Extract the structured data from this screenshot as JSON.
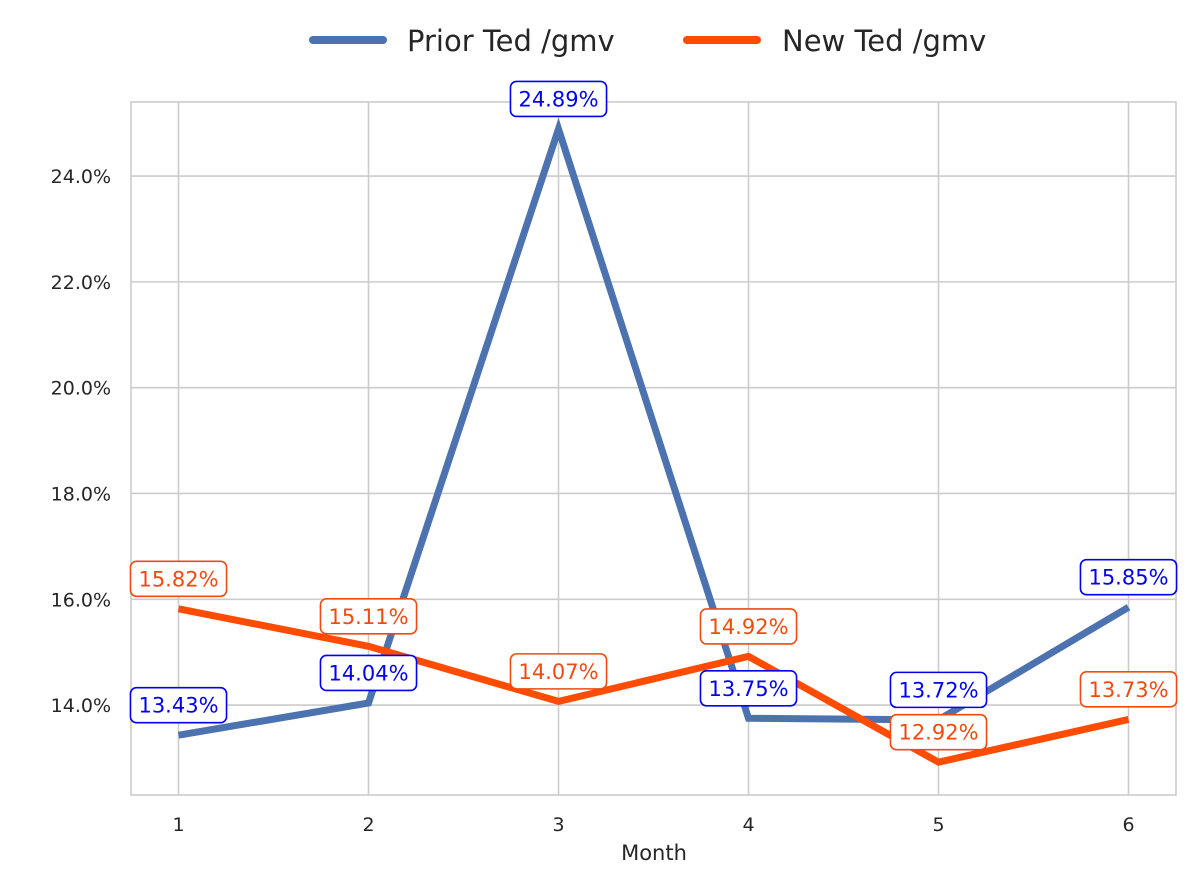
{
  "chart_data": {
    "type": "line",
    "title": "",
    "xlabel": "Month",
    "ylabel": "",
    "x": [
      1,
      2,
      3,
      4,
      5,
      6
    ],
    "x_tick_labels": [
      "1",
      "2",
      "3",
      "4",
      "5",
      "6"
    ],
    "y_tick_values": [
      14.0,
      16.0,
      18.0,
      20.0,
      22.0,
      24.0
    ],
    "y_tick_labels": [
      "14.0%",
      "16.0%",
      "18.0%",
      "20.0%",
      "22.0%",
      "24.0%"
    ],
    "ylim": [
      12.3,
      25.4
    ],
    "xlim": [
      0.75,
      6.25
    ],
    "grid": true,
    "legend_position": "top-center",
    "series": [
      {
        "name": "Prior Ted /gmv",
        "color": "#4c72b0",
        "label_color": "#0000ee",
        "values": [
          13.43,
          14.04,
          24.89,
          13.75,
          13.72,
          15.85
        ],
        "labels": [
          "13.43%",
          "14.04%",
          "24.89%",
          "13.75%",
          "13.72%",
          "15.85%"
        ]
      },
      {
        "name": "New Ted /gmv",
        "color": "#ff4c00",
        "label_color": "#f04a10",
        "values": [
          15.82,
          15.11,
          14.07,
          14.92,
          12.92,
          13.73
        ],
        "labels": [
          "15.82%",
          "15.11%",
          "14.07%",
          "14.92%",
          "12.92%",
          "13.73%"
        ]
      }
    ]
  }
}
